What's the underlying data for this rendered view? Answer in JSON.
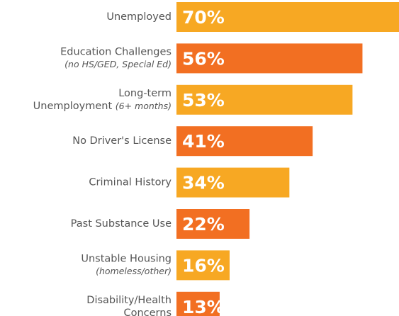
{
  "chart_data": {
    "type": "bar",
    "orientation": "horizontal",
    "categories": [
      {
        "label": [
          "Unemployed"
        ]
      },
      {
        "label": [
          "Education Challenges"
        ],
        "note": "(no HS/GED, Special Ed)"
      },
      {
        "label": [
          "Long-term",
          "Unemployment"
        ],
        "note": "(6+ months)",
        "note_inline": true
      },
      {
        "label": [
          "No Driver's License"
        ]
      },
      {
        "label": [
          "Criminal History"
        ]
      },
      {
        "label": [
          "Past Substance Use"
        ]
      },
      {
        "label": [
          "Unstable Housing"
        ],
        "note": "(homeless/other)"
      },
      {
        "label": [
          "Disability/Health",
          "Concerns"
        ]
      }
    ],
    "values": [
      70,
      56,
      53,
      41,
      34,
      22,
      16,
      13
    ],
    "value_labels": [
      "70%",
      "56%",
      "53%",
      "41%",
      "34%",
      "22%",
      "16%",
      "13%"
    ],
    "colors": [
      "#f7a823",
      "#f26f22",
      "#f7a823",
      "#f26f22",
      "#f7a823",
      "#f26f22",
      "#f7a823",
      "#f26f22"
    ],
    "xlim": [
      0,
      67
    ]
  }
}
